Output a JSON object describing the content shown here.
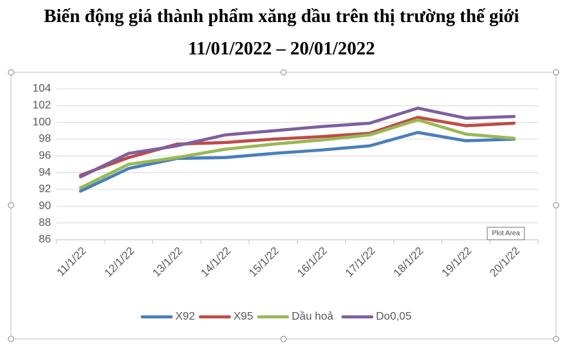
{
  "chart_data": {
    "type": "line",
    "title": "Biến động giá thành phẩm xăng dầu trên thị trường thế giới",
    "subtitle": "11/01/2022 – 20/01/2022",
    "categories": [
      "11/1/22",
      "12/1/22",
      "13/1/22",
      "14/1/22",
      "15/1/22",
      "16/1/22",
      "17/1/22",
      "18/1/22",
      "19/1/22",
      "20/1/22"
    ],
    "series": [
      {
        "name": "X92",
        "color": "#4a7ebb",
        "values": [
          91.8,
          94.5,
          95.7,
          95.8,
          96.3,
          96.7,
          97.2,
          98.8,
          97.8,
          98.0
        ]
      },
      {
        "name": "X95",
        "color": "#be4b48",
        "values": [
          93.7,
          95.8,
          97.4,
          97.6,
          98.0,
          98.3,
          98.7,
          100.6,
          99.6,
          99.9
        ]
      },
      {
        "name": "Dầu hoả",
        "color": "#98b954",
        "values": [
          92.2,
          95.0,
          95.8,
          96.8,
          97.4,
          97.9,
          98.5,
          100.3,
          98.6,
          98.1
        ]
      },
      {
        "name": "Do0,05",
        "color": "#7d60a0",
        "values": [
          93.5,
          96.3,
          97.2,
          98.5,
          99.0,
          99.5,
          99.9,
          101.7,
          100.5,
          100.7
        ]
      }
    ],
    "ylim": [
      86,
      104
    ],
    "yticks": [
      86,
      88,
      90,
      92,
      94,
      96,
      98,
      100,
      102,
      104
    ],
    "grid": true,
    "legend": "bottom",
    "tooltip": "Plot Area"
  }
}
